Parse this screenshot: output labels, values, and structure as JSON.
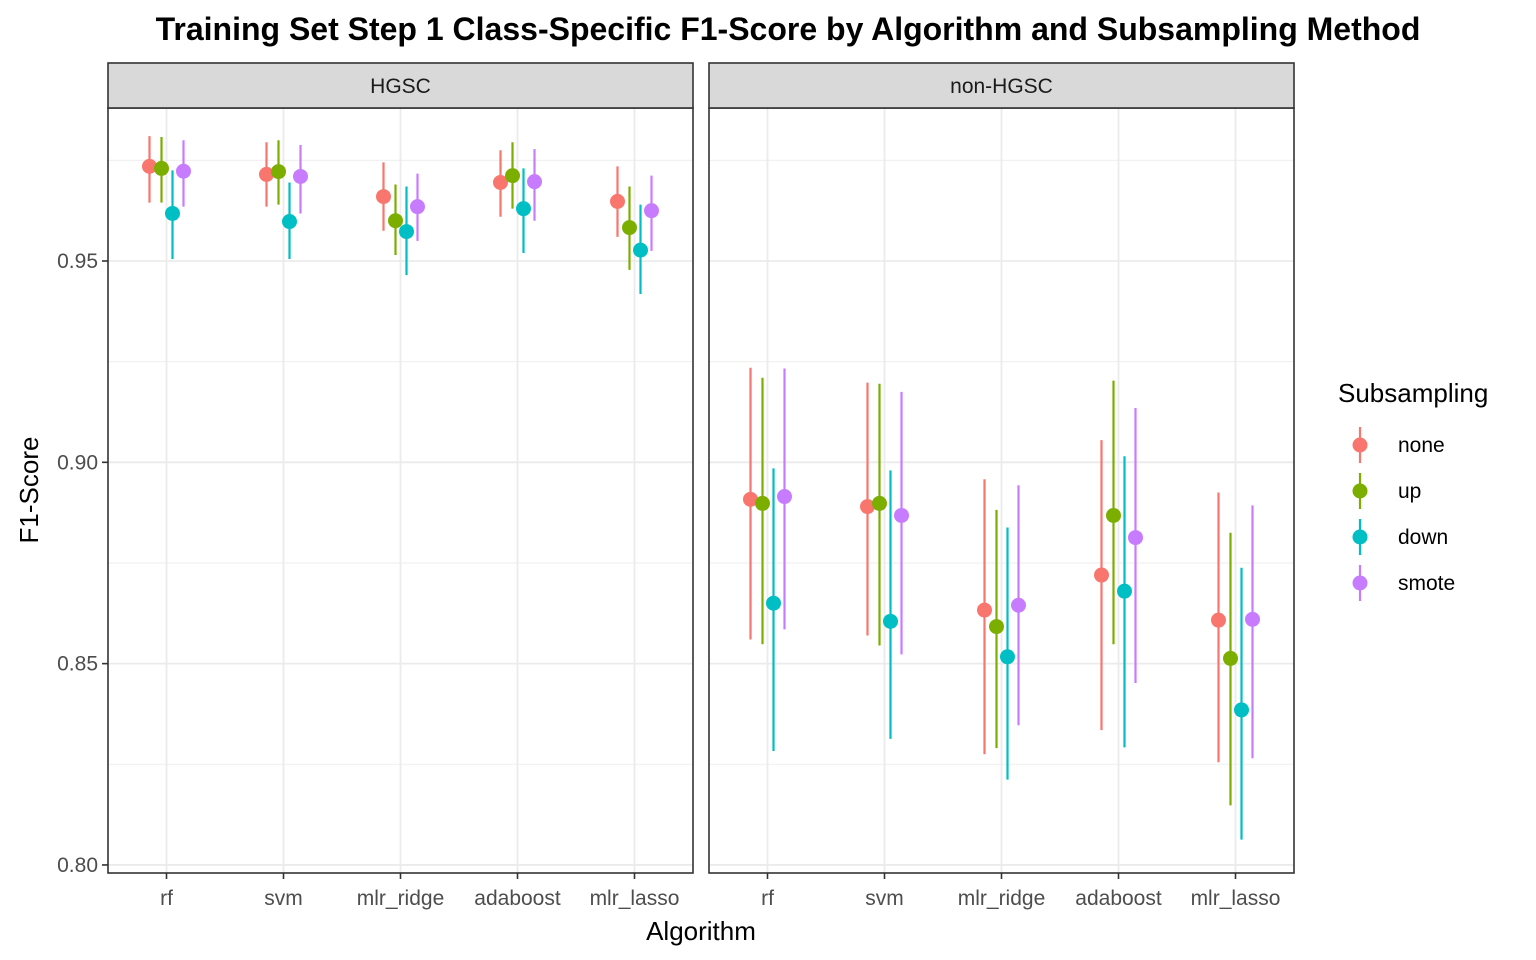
{
  "chart_data": {
    "type": "scatter",
    "title": "Training Set Step 1 Class-Specific F1-Score by Algorithm and Subsampling Method",
    "xlabel": "Algorithm",
    "ylabel": "F1-Score",
    "ylim": [
      0.798,
      0.988
    ],
    "yticks": [
      "0.80",
      "0.85",
      "0.90",
      "0.95"
    ],
    "categories": [
      "rf",
      "svm",
      "mlr_ridge",
      "adaboost",
      "mlr_lasso"
    ],
    "grid": true,
    "legend": {
      "title": "Subsampling",
      "position": "right",
      "entries": [
        {
          "name": "none",
          "color": "#F8766D"
        },
        {
          "name": "up",
          "color": "#7CAE00"
        },
        {
          "name": "down",
          "color": "#00BFC4"
        },
        {
          "name": "smote",
          "color": "#C77CFF"
        }
      ]
    },
    "panels": [
      {
        "name": "HGSC",
        "series": [
          {
            "name": "none",
            "values": [
              0.9735,
              0.9715,
              0.966,
              0.9695,
              0.9648
            ],
            "low": [
              0.9645,
              0.9635,
              0.9575,
              0.961,
              0.956
            ],
            "high": [
              0.981,
              0.9795,
              0.9745,
              0.9775,
              0.9735
            ]
          },
          {
            "name": "up",
            "values": [
              0.973,
              0.9722,
              0.96,
              0.9712,
              0.9583
            ],
            "low": [
              0.9645,
              0.964,
              0.9515,
              0.963,
              0.9478
            ],
            "high": [
              0.9808,
              0.98,
              0.969,
              0.9795,
              0.9685
            ]
          },
          {
            "name": "down",
            "values": [
              0.9618,
              0.9598,
              0.9573,
              0.963,
              0.9527
            ],
            "low": [
              0.9505,
              0.9505,
              0.9465,
              0.952,
              0.9418
            ],
            "high": [
              0.9725,
              0.9695,
              0.9685,
              0.973,
              0.964
            ]
          },
          {
            "name": "smote",
            "values": [
              0.9723,
              0.971,
              0.9635,
              0.9697,
              0.9625
            ],
            "low": [
              0.9635,
              0.9618,
              0.955,
              0.96,
              0.9525
            ],
            "high": [
              0.98,
              0.9788,
              0.9717,
              0.9778,
              0.9712
            ]
          }
        ]
      },
      {
        "name": "non-HGSC",
        "series": [
          {
            "name": "none",
            "values": [
              0.8908,
              0.889,
              0.8633,
              0.872,
              0.8608
            ],
            "low": [
              0.856,
              0.857,
              0.8275,
              0.8335,
              0.8255
            ],
            "high": [
              0.9235,
              0.9198,
              0.8958,
              0.9055,
              0.8925
            ]
          },
          {
            "name": "up",
            "values": [
              0.8898,
              0.8898,
              0.8592,
              0.8868,
              0.8513
            ],
            "low": [
              0.8548,
              0.8545,
              0.829,
              0.8548,
              0.8148
            ],
            "high": [
              0.921,
              0.9195,
              0.8882,
              0.9203,
              0.8825
            ]
          },
          {
            "name": "down",
            "values": [
              0.865,
              0.8605,
              0.8517,
              0.868,
              0.8385
            ],
            "low": [
              0.8283,
              0.8313,
              0.8212,
              0.8292,
              0.8063
            ],
            "high": [
              0.8985,
              0.898,
              0.8838,
              0.9015,
              0.8738
            ]
          },
          {
            "name": "smote",
            "values": [
              0.8915,
              0.8868,
              0.8645,
              0.8813,
              0.861
            ],
            "low": [
              0.8585,
              0.8523,
              0.8347,
              0.8452,
              0.8265
            ],
            "high": [
              0.9233,
              0.9175,
              0.8943,
              0.9135,
              0.8893
            ]
          }
        ]
      }
    ]
  }
}
